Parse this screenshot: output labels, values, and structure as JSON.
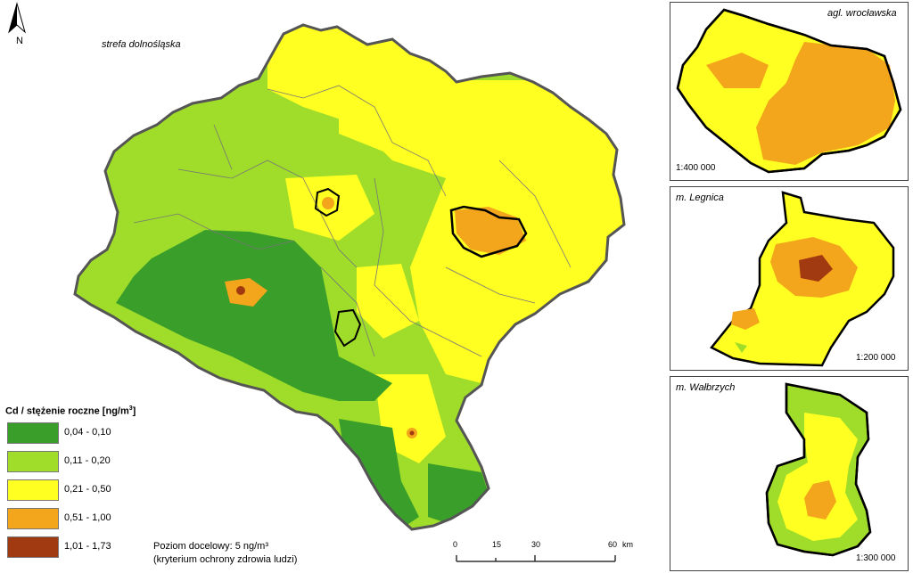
{
  "main_map": {
    "region_label": "strefa dolnośląska",
    "north_letter": "N"
  },
  "legend": {
    "title": "Cd / stężenie roczne [ng/m",
    "title_sup": "3",
    "title_end": "]",
    "classes": [
      {
        "label": "0,04 - 0,10",
        "color": "#3a9e2a"
      },
      {
        "label": "0,11 - 0,20",
        "color": "#9fdd2a"
      },
      {
        "label": "0,21 - 0,50",
        "color": "#ffff22"
      },
      {
        "label": "0,51 - 1,00",
        "color": "#f3a51b"
      },
      {
        "label": "1,01 - 1,73",
        "color": "#a13a10"
      }
    ]
  },
  "target_note": {
    "line1": "Poziom docelowy: 5 ng/m³",
    "line2": "(kryterium ochrony zdrowia ludzi)"
  },
  "scalebar": {
    "ticks": [
      "0",
      "15",
      "30",
      "60"
    ],
    "unit": "km"
  },
  "insets": [
    {
      "title": "agl. wrocławska",
      "scale": "1:400 000"
    },
    {
      "title": "m. Legnica",
      "scale": "1:200 000"
    },
    {
      "title": "m. Wałbrzych",
      "scale": "1:300 000"
    }
  ],
  "colors": {
    "boundary": "#555555",
    "city_outline": "#000000",
    "dark_green": "#3a9e2a",
    "light_green": "#9fdd2a",
    "yellow": "#ffff22",
    "orange": "#f3a51b",
    "brown": "#a13a10"
  }
}
